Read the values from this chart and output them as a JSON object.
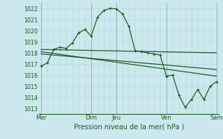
{
  "bg_color": "#cce8ee",
  "grid_color_minor": "#b8d8e0",
  "grid_color_major": "#90b8c4",
  "line_color": "#1a5c20",
  "xlabel": "Pression niveau de la mer( hPa )",
  "ylim": [
    1012.5,
    1022.5
  ],
  "yticks": [
    1013,
    1014,
    1015,
    1016,
    1017,
    1018,
    1019,
    1020,
    1021,
    1022
  ],
  "xtick_labels": [
    "Mer",
    "Dim",
    "Jeu",
    "Ven",
    "Sam"
  ],
  "xtick_positions": [
    0,
    24,
    36,
    60,
    84
  ],
  "vline_positions": [
    0,
    24,
    36,
    60,
    84
  ],
  "series1_x": [
    0,
    3,
    6,
    9,
    12,
    15,
    18,
    21,
    24,
    27,
    30,
    33,
    36,
    39,
    42,
    45,
    48,
    51,
    54,
    57,
    60,
    63,
    66,
    69,
    72,
    75,
    78,
    81,
    84
  ],
  "series1_y": [
    1016.8,
    1017.1,
    1018.3,
    1018.5,
    1018.4,
    1018.9,
    1019.8,
    1020.1,
    1019.5,
    1021.2,
    1021.8,
    1022.0,
    1021.95,
    1021.5,
    1020.4,
    1018.2,
    1018.1,
    1018.0,
    1017.9,
    1017.8,
    1015.9,
    1016.0,
    1014.2,
    1013.1,
    1013.8,
    1014.7,
    1013.8,
    1015.0,
    1015.4
  ],
  "trend1_x": [
    0,
    84
  ],
  "trend1_y": [
    1018.3,
    1018.0
  ],
  "trend2_x": [
    0,
    84
  ],
  "trend2_y": [
    1018.1,
    1015.9
  ],
  "trend3_x": [
    0,
    84
  ],
  "trend3_y": [
    1017.9,
    1016.5
  ],
  "xlim": [
    -1,
    85
  ]
}
